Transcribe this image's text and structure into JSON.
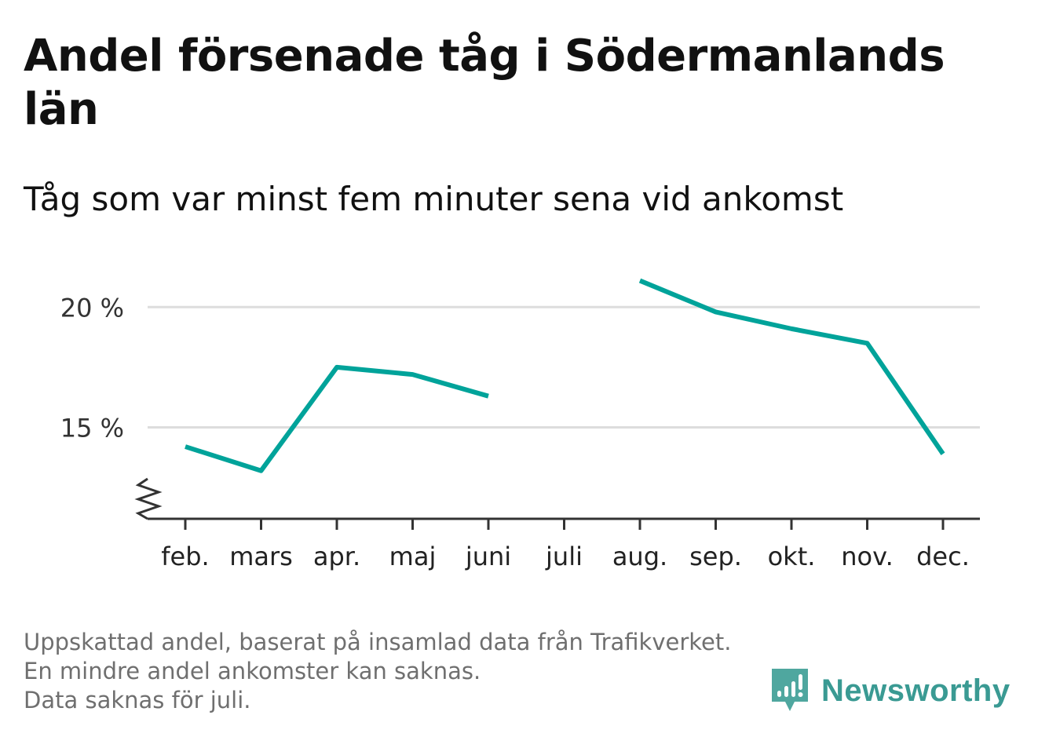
{
  "header": {
    "title": "Andel försenade tåg i Södermanlands län",
    "subtitle": "Tåg som var minst fem minuter sena vid ankomst"
  },
  "footer": {
    "line1": "Uppskattad andel, baserat på insamlad data från Trafikverket. En mindre andel ankomster kan saknas.",
    "line2": "Data saknas för juli."
  },
  "brand": {
    "name": "Newsworthy",
    "icon": "newsworthy-logo-icon",
    "color": "#3a9a93"
  },
  "chart_data": {
    "type": "line",
    "categories": [
      "feb.",
      "mars",
      "apr.",
      "maj",
      "juni",
      "juli",
      "aug.",
      "sep.",
      "okt.",
      "nov.",
      "dec."
    ],
    "series": [
      {
        "values": [
          14.2,
          13.2,
          17.5,
          17.2,
          16.3,
          null,
          21.1,
          19.8,
          19.1,
          18.5,
          13.9
        ],
        "color": "#00a39a"
      }
    ],
    "yticks": [
      15,
      20
    ],
    "ytick_labels": [
      "15 %",
      "20 %"
    ],
    "ylim": [
      11.2,
      22
    ],
    "y_axis_break": true,
    "grid": "horizontal",
    "xlabel": "",
    "ylabel": ""
  }
}
